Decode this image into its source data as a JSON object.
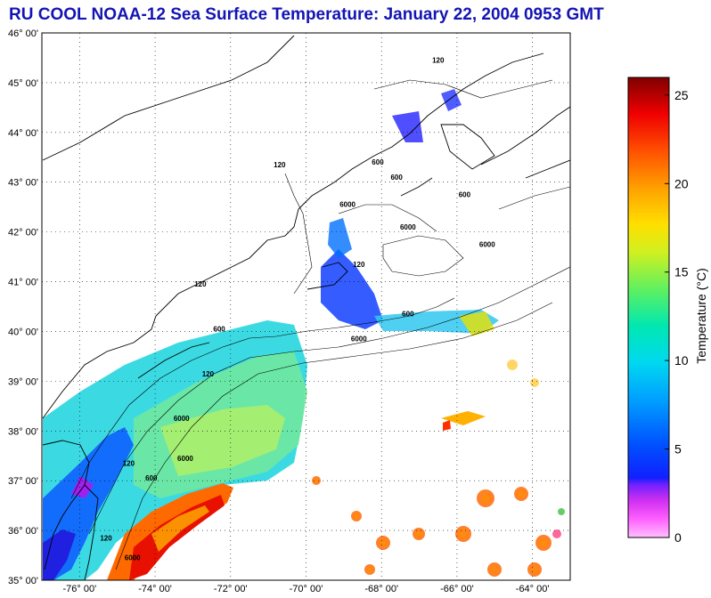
{
  "title": "RU COOL  NOAA-12  Sea Surface Temperature:  January 22, 2004 0953 GMT",
  "map": {
    "lon_range": [
      -77,
      -63
    ],
    "lat_range": [
      35,
      46
    ],
    "lat_labels": [
      "35° 00'",
      "36° 00'",
      "37° 00'",
      "38° 00'",
      "39° 00'",
      "40° 00'",
      "41° 00'",
      "42° 00'",
      "43° 00'",
      "44° 00'",
      "45° 00'",
      "46° 00'"
    ],
    "lon_labels": [
      "-76° 00'",
      "-74° 00'",
      "-72° 00'",
      "-70° 00'",
      "-68° 00'",
      "-66° 00'",
      "-64° 00'"
    ],
    "lon_label_values": [
      -76,
      -74,
      -72,
      -70,
      -68,
      -66,
      -64
    ],
    "grid": true,
    "contour_labels": [
      {
        "text": "120",
        "lon": -70.7,
        "lat": 43.3
      },
      {
        "text": "600",
        "lon": -68.1,
        "lat": 43.35
      },
      {
        "text": "6000",
        "lon": -68.9,
        "lat": 42.5
      },
      {
        "text": "600",
        "lon": -67.6,
        "lat": 43.05
      },
      {
        "text": "600",
        "lon": -65.8,
        "lat": 42.7
      },
      {
        "text": "6000",
        "lon": -67.3,
        "lat": 42.05
      },
      {
        "text": "6000",
        "lon": -65.2,
        "lat": 41.7
      },
      {
        "text": "120",
        "lon": -68.6,
        "lat": 41.3
      },
      {
        "text": "600",
        "lon": -67.3,
        "lat": 40.3
      },
      {
        "text": "6000",
        "lon": -68.6,
        "lat": 39.8
      },
      {
        "text": "120",
        "lon": -72.8,
        "lat": 40.9
      },
      {
        "text": "600",
        "lon": -72.3,
        "lat": 40.0
      },
      {
        "text": "120",
        "lon": -72.6,
        "lat": 39.1
      },
      {
        "text": "6000",
        "lon": -73.3,
        "lat": 38.2
      },
      {
        "text": "120",
        "lon": -74.7,
        "lat": 37.3
      },
      {
        "text": "600",
        "lon": -74.1,
        "lat": 37.0
      },
      {
        "text": "6000",
        "lon": -73.2,
        "lat": 37.4
      },
      {
        "text": "120",
        "lon": -75.3,
        "lat": 35.8
      },
      {
        "text": "6000",
        "lon": -74.6,
        "lat": 35.4
      },
      {
        "text": "120",
        "lon": -66.5,
        "lat": 45.4
      }
    ]
  },
  "colorbar": {
    "label": "Temperature (°C)",
    "min": 0,
    "max": 26,
    "ticks": [
      "0",
      "5",
      "10",
      "15",
      "20",
      "25"
    ],
    "tick_values": [
      0,
      5,
      10,
      15,
      20,
      25
    ]
  },
  "colors": {
    "title": "#1414b4",
    "palette": [
      "#ff80ff",
      "#e040ff",
      "#8020ff",
      "#2040ff",
      "#00a0ff",
      "#00e0e0",
      "#40e0a0",
      "#a0f040",
      "#f0f020",
      "#ffb000",
      "#ff6000",
      "#ff1000",
      "#b00000",
      "#600000"
    ]
  }
}
